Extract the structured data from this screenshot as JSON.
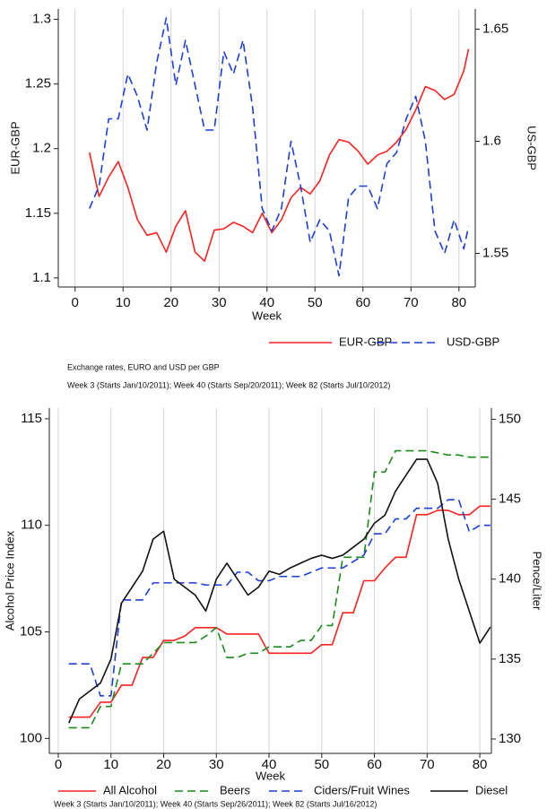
{
  "chart_data": [
    {
      "type": "line",
      "xlabel": "Week",
      "ylabel": "EUR-GBP",
      "y2label": "US-GBP",
      "grid": true,
      "xlim": [
        -3.5,
        83.4
      ],
      "xticks": [
        0,
        10,
        20,
        30,
        40,
        50,
        60,
        70,
        80
      ],
      "ylim": [
        1.093,
        1.308
      ],
      "yticks": [
        1.1,
        1.15,
        1.2,
        1.25,
        1.3
      ],
      "y2lim": [
        1.535,
        1.659
      ],
      "y2ticks": [
        1.55,
        1.6,
        1.65
      ],
      "x": [
        3,
        5,
        7,
        9,
        11,
        13,
        15,
        17,
        19,
        21,
        23,
        25,
        27,
        29,
        31,
        33,
        35,
        37,
        39,
        41,
        43,
        45,
        47,
        49,
        51,
        53,
        55,
        57,
        59,
        61,
        63,
        65,
        67,
        69,
        71,
        73,
        75,
        77,
        79,
        81,
        82
      ],
      "series": [
        {
          "name": "EUR-GBP",
          "color": "#ff2020",
          "linestyle": "solid",
          "axis": "y",
          "values": [
            1.197,
            1.163,
            1.178,
            1.19,
            1.17,
            1.145,
            1.133,
            1.135,
            1.12,
            1.14,
            1.152,
            1.12,
            1.113,
            1.137,
            1.138,
            1.143,
            1.14,
            1.135,
            1.15,
            1.135,
            1.145,
            1.162,
            1.17,
            1.165,
            1.175,
            1.195,
            1.207,
            1.205,
            1.198,
            1.188,
            1.195,
            1.198,
            1.205,
            1.215,
            1.23,
            1.248,
            1.245,
            1.238,
            1.242,
            1.26,
            1.277
          ]
        },
        {
          "name": "USD-GBP",
          "color": "#1c3fd8",
          "linestyle": "dashed",
          "axis": "y2",
          "values": [
            1.57,
            1.58,
            1.61,
            1.61,
            1.63,
            1.62,
            1.605,
            1.635,
            1.655,
            1.625,
            1.645,
            1.625,
            1.605,
            1.605,
            1.64,
            1.63,
            1.645,
            1.615,
            1.57,
            1.56,
            1.57,
            1.6,
            1.58,
            1.555,
            1.565,
            1.56,
            1.54,
            1.575,
            1.58,
            1.58,
            1.57,
            1.59,
            1.595,
            1.61,
            1.62,
            1.6,
            1.56,
            1.55,
            1.565,
            1.552,
            1.562
          ]
        }
      ],
      "notes": [
        "Exchange rates, EURO and USD per GBP",
        "Week 3 (Starts Jan/10/2011); Week 40 (Starts Sep/20/2011); Week 82 (Starts Jul/10/2012)"
      ]
    },
    {
      "type": "line",
      "xlabel": "Week",
      "ylabel": "Alcohol Price Index",
      "y2label": "Pence/Liter",
      "grid": true,
      "xlim": [
        -1.7,
        82.2
      ],
      "xticks": [
        0,
        10,
        20,
        30,
        40,
        50,
        60,
        70,
        80
      ],
      "ylim": [
        99.3,
        115.5
      ],
      "yticks": [
        100,
        105,
        110,
        115
      ],
      "y2lim": [
        129.1,
        150.7
      ],
      "y2ticks": [
        130,
        135,
        140,
        145,
        150
      ],
      "x": [
        2,
        4,
        6,
        8,
        10,
        12,
        14,
        16,
        18,
        20,
        22,
        24,
        26,
        28,
        30,
        32,
        34,
        36,
        38,
        40,
        42,
        44,
        46,
        48,
        50,
        52,
        54,
        56,
        58,
        60,
        62,
        64,
        66,
        68,
        70,
        72,
        74,
        76,
        78,
        80,
        82
      ],
      "series": [
        {
          "name": "All Alcohol",
          "color": "#ff2020",
          "linestyle": "solid",
          "axis": "y",
          "values": [
            101,
            101,
            101,
            101.7,
            101.7,
            102.5,
            102.5,
            103.8,
            103.8,
            104.6,
            104.6,
            104.8,
            105.2,
            105.2,
            105.2,
            104.9,
            104.9,
            104.9,
            104.9,
            104,
            104,
            104,
            104,
            104,
            104.4,
            104.4,
            105.9,
            105.9,
            107.4,
            107.4,
            108,
            108.5,
            108.5,
            110.5,
            110.5,
            110.7,
            110.7,
            110.5,
            110.5,
            110.9,
            110.9
          ]
        },
        {
          "name": "Beers",
          "color": "#1a8a1a",
          "linestyle": "dashed",
          "axis": "y",
          "values": [
            100.5,
            100.5,
            100.5,
            101.5,
            101.5,
            103.5,
            103.5,
            103.5,
            104,
            104.5,
            104.5,
            104.5,
            104.5,
            104.8,
            105.2,
            103.8,
            103.8,
            104,
            104,
            104.3,
            104.3,
            104.3,
            104.6,
            104.6,
            105.3,
            105.3,
            108.5,
            108.5,
            108.5,
            112.5,
            112.5,
            113.5,
            113.5,
            113.5,
            113.5,
            113.4,
            113.3,
            113.3,
            113.2,
            113.2,
            113.2
          ]
        },
        {
          "name": "Ciders/Fruit Wines",
          "color": "#1c3fd8",
          "linestyle": "dashed",
          "axis": "y",
          "values": [
            103.5,
            103.5,
            103.5,
            102,
            102,
            106.5,
            106.5,
            106.5,
            107.3,
            107.3,
            107.3,
            107.3,
            107.3,
            107.2,
            107.2,
            107.2,
            107.8,
            107.8,
            107.4,
            107.4,
            107.6,
            107.6,
            107.6,
            107.8,
            108,
            108,
            108,
            108.3,
            108.6,
            109.6,
            109.6,
            110.3,
            110.3,
            110.8,
            110.8,
            110.8,
            111.2,
            111.2,
            109.7,
            110,
            110
          ]
        },
        {
          "name": "Diesel",
          "color": "#111111",
          "linestyle": "solid",
          "axis": "y2",
          "values": [
            131,
            132.5,
            133,
            133.5,
            135,
            138.5,
            139.5,
            140.5,
            142.5,
            143,
            140,
            139.5,
            139,
            138,
            140,
            141,
            140,
            139,
            139.5,
            140.5,
            140.3,
            140.7,
            141,
            141.3,
            141.5,
            141.3,
            141.5,
            142,
            142.5,
            143.5,
            144,
            145.5,
            146.5,
            147.5,
            147.5,
            146,
            142.5,
            140,
            138,
            136,
            137
          ]
        }
      ],
      "notes": [
        "Week 3 (Starts Jan/10/2011); Week 40 (Starts Sep/26/2011); Week 82 (Starts Jul/16/2012)"
      ]
    }
  ]
}
